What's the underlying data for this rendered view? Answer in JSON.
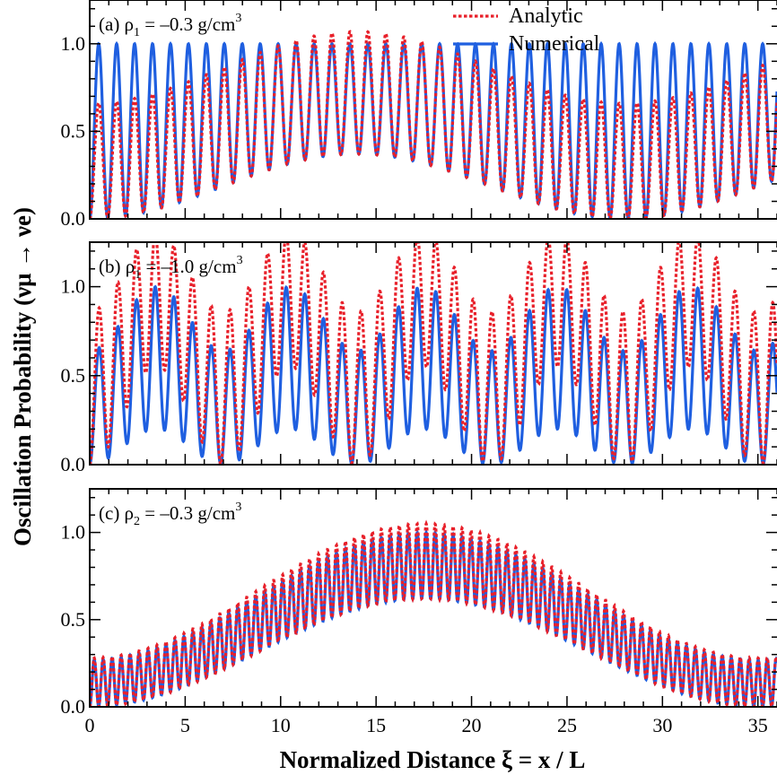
{
  "colors": {
    "analytic": "#e8202a",
    "numerical": "#1f5fe0",
    "axes": "#000000"
  },
  "legend": {
    "placement": "top-center of panel (a)",
    "entries": [
      {
        "label": "Analytic",
        "style": "dotted",
        "color": "#e8202a"
      },
      {
        "label": "Numerical",
        "style": "solid",
        "color": "#1f5fe0"
      }
    ]
  },
  "axes": {
    "ylabel": "Oscillation Probability (νμ → νe)",
    "xlabel": "Normalized Distance ξ = x / L",
    "xticks": [
      "0",
      "5",
      "10",
      "15",
      "20",
      "25",
      "30",
      "35"
    ],
    "yticks": [
      "0.0",
      "0.5",
      "1.0"
    ]
  },
  "chart_data": [
    {
      "type": "line",
      "panel": "a",
      "label": "(a) ρ1 = –0.3 g/cm3",
      "label_parts": {
        "prefix": "(a) ρ",
        "sub": "1",
        "mid": " = –0.3 g/cm",
        "sup": "3"
      },
      "xlim": [
        0,
        36
      ],
      "ylim": [
        0,
        1.25
      ],
      "grid": false,
      "model": {
        "fast_period": 0.94,
        "envelope_period": 28.0,
        "numerical": {
          "max": 1.0,
          "min_range": [
            0.0,
            0.37
          ]
        },
        "analytic": {
          "max_range": [
            0.66,
            1.07
          ],
          "min_range": [
            0.0,
            0.37
          ]
        }
      },
      "series": [
        {
          "name": "Analytic",
          "style": "dotted"
        },
        {
          "name": "Numerical",
          "style": "solid"
        }
      ]
    },
    {
      "type": "line",
      "panel": "b",
      "label": "(b) ρ1 = –1.0 g/cm3",
      "label_parts": {
        "prefix": "(b) ρ",
        "sub": "1",
        "mid": " = –1.0 g/cm",
        "sup": "3"
      },
      "xlim": [
        0,
        36
      ],
      "ylim": [
        0,
        1.25
      ],
      "grid": false,
      "model": {
        "fast_period": 0.98,
        "envelope_period": 7.0,
        "numerical": {
          "max_range": [
            0.64,
            1.0
          ],
          "min_range": [
            0.0,
            0.2
          ]
        },
        "analytic": {
          "max_range": [
            0.86,
            1.3
          ],
          "min_range": [
            0.0,
            0.55
          ]
        }
      },
      "series": [
        {
          "name": "Analytic",
          "style": "dotted"
        },
        {
          "name": "Numerical",
          "style": "solid"
        }
      ]
    },
    {
      "type": "line",
      "panel": "c",
      "label": "(c) ρ2 = –0.3 g/cm3",
      "label_parts": {
        "prefix": "(c) ρ",
        "sub": "2",
        "mid": " = –0.3 g/cm",
        "sup": "3"
      },
      "xlim": [
        0,
        36
      ],
      "ylim": [
        0,
        1.25
      ],
      "grid": false,
      "model": {
        "fast_period": 0.47,
        "envelope_period": 35.0,
        "numerical": {
          "max_range": [
            0.27,
            1.0
          ],
          "min_range": [
            0.0,
            0.62
          ]
        },
        "analytic": {
          "max_range": [
            0.28,
            1.05
          ],
          "min_range": [
            0.0,
            0.62
          ]
        }
      },
      "series": [
        {
          "name": "Analytic",
          "style": "dotted"
        },
        {
          "name": "Numerical",
          "style": "solid"
        }
      ]
    }
  ]
}
